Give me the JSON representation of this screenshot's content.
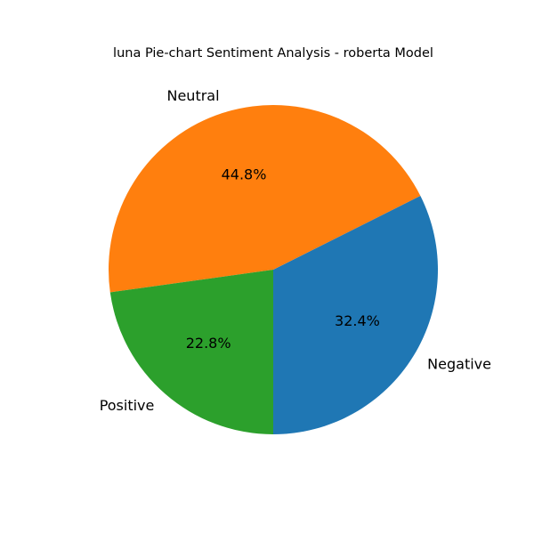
{
  "chart_data": {
    "type": "pie",
    "title": "luna Pie-chart Sentiment Analysis - roberta Model",
    "start_angle_deg": -90,
    "direction": "counterclockwise",
    "slices": [
      {
        "label": "Negative",
        "value": 32.4,
        "pct_label": "32.4%",
        "color": "#1f77b4"
      },
      {
        "label": "Neutral",
        "value": 44.8,
        "pct_label": "44.8%",
        "color": "#ff7f0e"
      },
      {
        "label": "Positive",
        "value": 22.8,
        "pct_label": "22.8%",
        "color": "#2ca02c"
      }
    ]
  }
}
